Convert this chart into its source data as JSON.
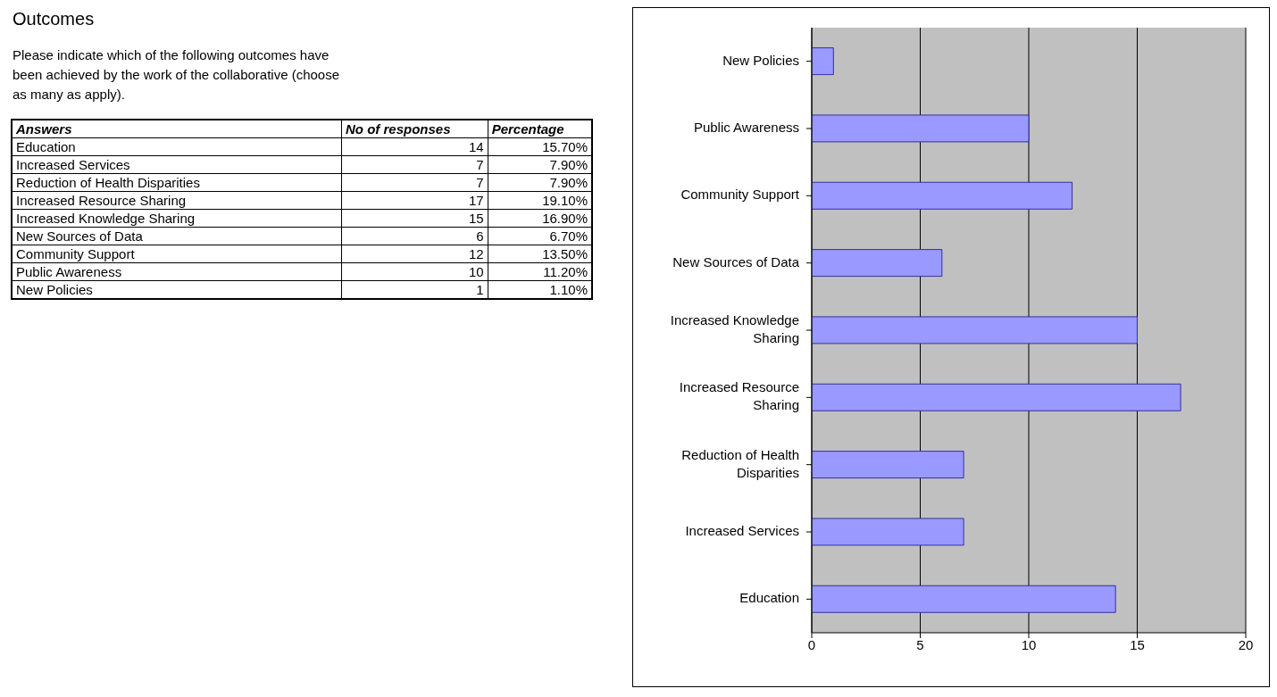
{
  "chart_data": [
    {
      "type": "other",
      "data_labels": true,
      "title": "Outcomes",
      "subtitle": "Please indicate which of the following outcomes have been achieved by the work of the collaborative (choose as many as apply).",
      "xlabel": "Answers",
      "categories": [
        "Education",
        "Increased Services",
        "Reduction of Health Disparities",
        "Increased Resource Sharing",
        "Increased Knowledge Sharing",
        "New Sources of Data",
        "Community Support",
        "Public Awareness",
        "New Policies"
      ],
      "series": [
        {
          "name": "No of responses",
          "values": [
            14,
            7,
            7,
            17,
            15,
            6,
            12,
            10,
            1
          ]
        },
        {
          "name": "Percentage",
          "values": [
            15.7,
            7.9,
            7.9,
            19.1,
            16.9,
            6.7,
            13.5,
            11.2,
            1.1
          ],
          "value_labels": [
            "15.70%",
            "7.90%",
            "7.90%",
            "19.10%",
            "16.90%",
            "6.70%",
            "13.50%",
            "11.20%",
            "1.10%"
          ]
        }
      ]
    },
    {
      "type": "bar",
      "orientation": "horizontal",
      "categories": [
        "New Policies",
        "Public Awareness",
        "Community Support",
        "New Sources of Data",
        "Increased Knowledge Sharing",
        "Increased Resource Sharing",
        "Reduction of Health Disparities",
        "Increased Services",
        "Education"
      ],
      "values": [
        1,
        10,
        12,
        6,
        15,
        17,
        7,
        7,
        14
      ],
      "color": "#9999ff",
      "xlim": [
        0,
        20
      ],
      "xticks": [
        0,
        5,
        10,
        15,
        20
      ],
      "grid": "x"
    }
  ]
}
